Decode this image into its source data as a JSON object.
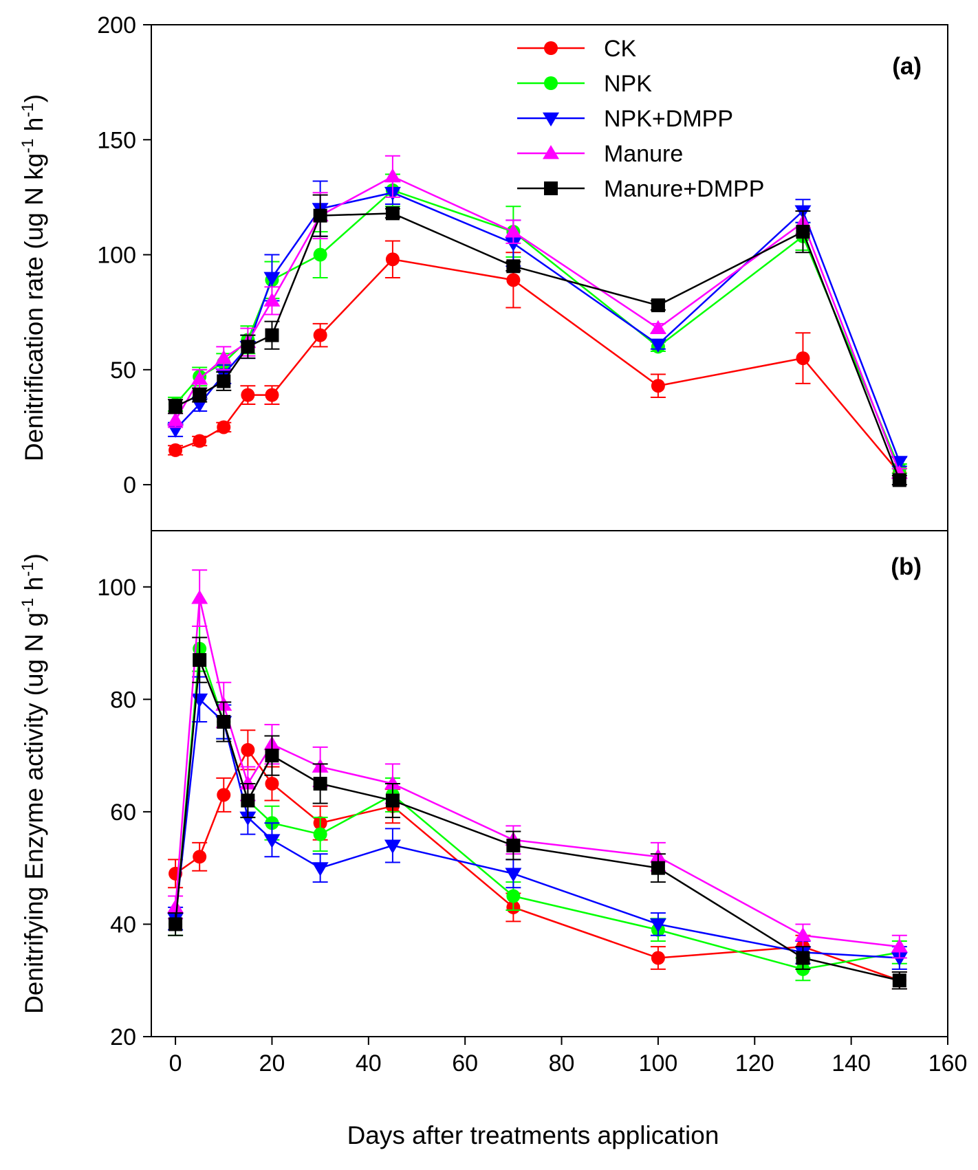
{
  "chart_data": {
    "type": "line",
    "shared_xlabel": "Days after treatments application",
    "x_ticks": [
      0,
      20,
      40,
      60,
      80,
      100,
      120,
      140,
      160
    ],
    "xlim": [
      -5,
      160
    ],
    "x": [
      0,
      5,
      10,
      15,
      20,
      30,
      45,
      70,
      100,
      130,
      150
    ],
    "legend": {
      "placement": "top-right of panel (a)",
      "entries": [
        "CK",
        "NPK",
        "NPK+DMPP",
        "Manure",
        "Manure+DMPP"
      ]
    },
    "series_styles": [
      {
        "name": "CK",
        "color": "#ff0000",
        "marker": "circle"
      },
      {
        "name": "NPK",
        "color": "#00ff00",
        "marker": "circle"
      },
      {
        "name": "NPK+DMPP",
        "color": "#0000ff",
        "marker": "triangle-down"
      },
      {
        "name": "Manure",
        "color": "#ff00ff",
        "marker": "triangle-up"
      },
      {
        "name": "Manure+DMPP",
        "color": "#000000",
        "marker": "square"
      }
    ],
    "panels": [
      {
        "label": "(a)",
        "ylabel_main": "Denitrification rate (ug N kg",
        "ylabel_sup1": "-1",
        "ylabel_mid": " h",
        "ylabel_sup2": "-1",
        "ylabel_end": ")",
        "ylim": [
          -20,
          200
        ],
        "y_ticks": [
          0,
          50,
          100,
          150,
          200
        ],
        "series": [
          {
            "name": "CK",
            "values": [
              15,
              19,
              25,
              39,
              39,
              65,
              98,
              89,
              43,
              55,
              5
            ],
            "errors": [
              2,
              2,
              2,
              4,
              4,
              5,
              8,
              12,
              5,
              11,
              2
            ]
          },
          {
            "name": "NPK",
            "values": [
              35,
              47,
              53,
              63,
              89,
              100,
              128,
              110,
              60,
              108,
              7
            ],
            "errors": [
              3,
              4,
              4,
              6,
              8,
              10,
              7,
              11,
              2,
              6,
              2
            ]
          },
          {
            "name": "NPK+DMPP",
            "values": [
              24,
              35,
              48,
              60,
              90,
              120,
              127,
              105,
              61,
              119,
              10
            ],
            "errors": [
              3,
              3,
              4,
              5,
              10,
              12,
              5,
              10,
              2,
              5,
              2
            ]
          },
          {
            "name": "Manure",
            "values": [
              28,
              46,
              55,
              62,
              80,
              117,
              134,
              110,
              68,
              114,
              5
            ],
            "errors": [
              3,
              4,
              5,
              6,
              6,
              10,
              9,
              5,
              2,
              5,
              2
            ]
          },
          {
            "name": "Manure+DMPP",
            "values": [
              34,
              39,
              45,
              60,
              65,
              117,
              118,
              95,
              78,
              110,
              2
            ],
            "errors": [
              3,
              3,
              4,
              5,
              6,
              9,
              2,
              2,
              2,
              9,
              2
            ]
          }
        ]
      },
      {
        "label": "(b)",
        "ylabel_main": "Denitrifying Enzyme activity (ug N g",
        "ylabel_sup1": "-1",
        "ylabel_mid": " h",
        "ylabel_sup2": "-1",
        "ylabel_end": ")",
        "ylim": [
          20,
          110
        ],
        "y_ticks": [
          20,
          40,
          60,
          80,
          100
        ],
        "series": [
          {
            "name": "CK",
            "values": [
              49,
              52,
              63,
              71,
              65,
              58,
              61,
              43,
              34,
              36,
              30
            ],
            "errors": [
              2.5,
              2.5,
              3,
              3.5,
              3,
              3,
              3,
              2.5,
              2,
              2,
              1.5
            ]
          },
          {
            "name": "NPK",
            "values": [
              40,
              89,
              76,
              62,
              58,
              56,
              63,
              45,
              39,
              32,
              35
            ],
            "errors": [
              2,
              4,
              3,
              3,
              3,
              3,
              3,
              2.5,
              2,
              2,
              2
            ]
          },
          {
            "name": "NPK+DMPP",
            "values": [
              41,
              80,
              76,
              59,
              55,
              50,
              54,
              49,
              40,
              35,
              34
            ],
            "errors": [
              2,
              4,
              3,
              3,
              3,
              2.5,
              3,
              2.5,
              2,
              2,
              2
            ]
          },
          {
            "name": "Manure",
            "values": [
              43,
              98,
              79,
              65,
              72,
              68,
              65,
              55,
              52,
              38,
              36
            ],
            "errors": [
              2,
              5,
              4,
              3,
              3.5,
              3.5,
              3.5,
              2.5,
              2.5,
              2,
              2
            ]
          },
          {
            "name": "Manure+DMPP",
            "values": [
              40,
              87,
              76,
              62,
              70,
              65,
              62,
              54,
              50,
              34,
              30
            ],
            "errors": [
              2,
              4,
              3.5,
              3,
              3.5,
              3.5,
              3,
              2.5,
              2.5,
              2,
              1.5
            ]
          }
        ]
      }
    ]
  }
}
